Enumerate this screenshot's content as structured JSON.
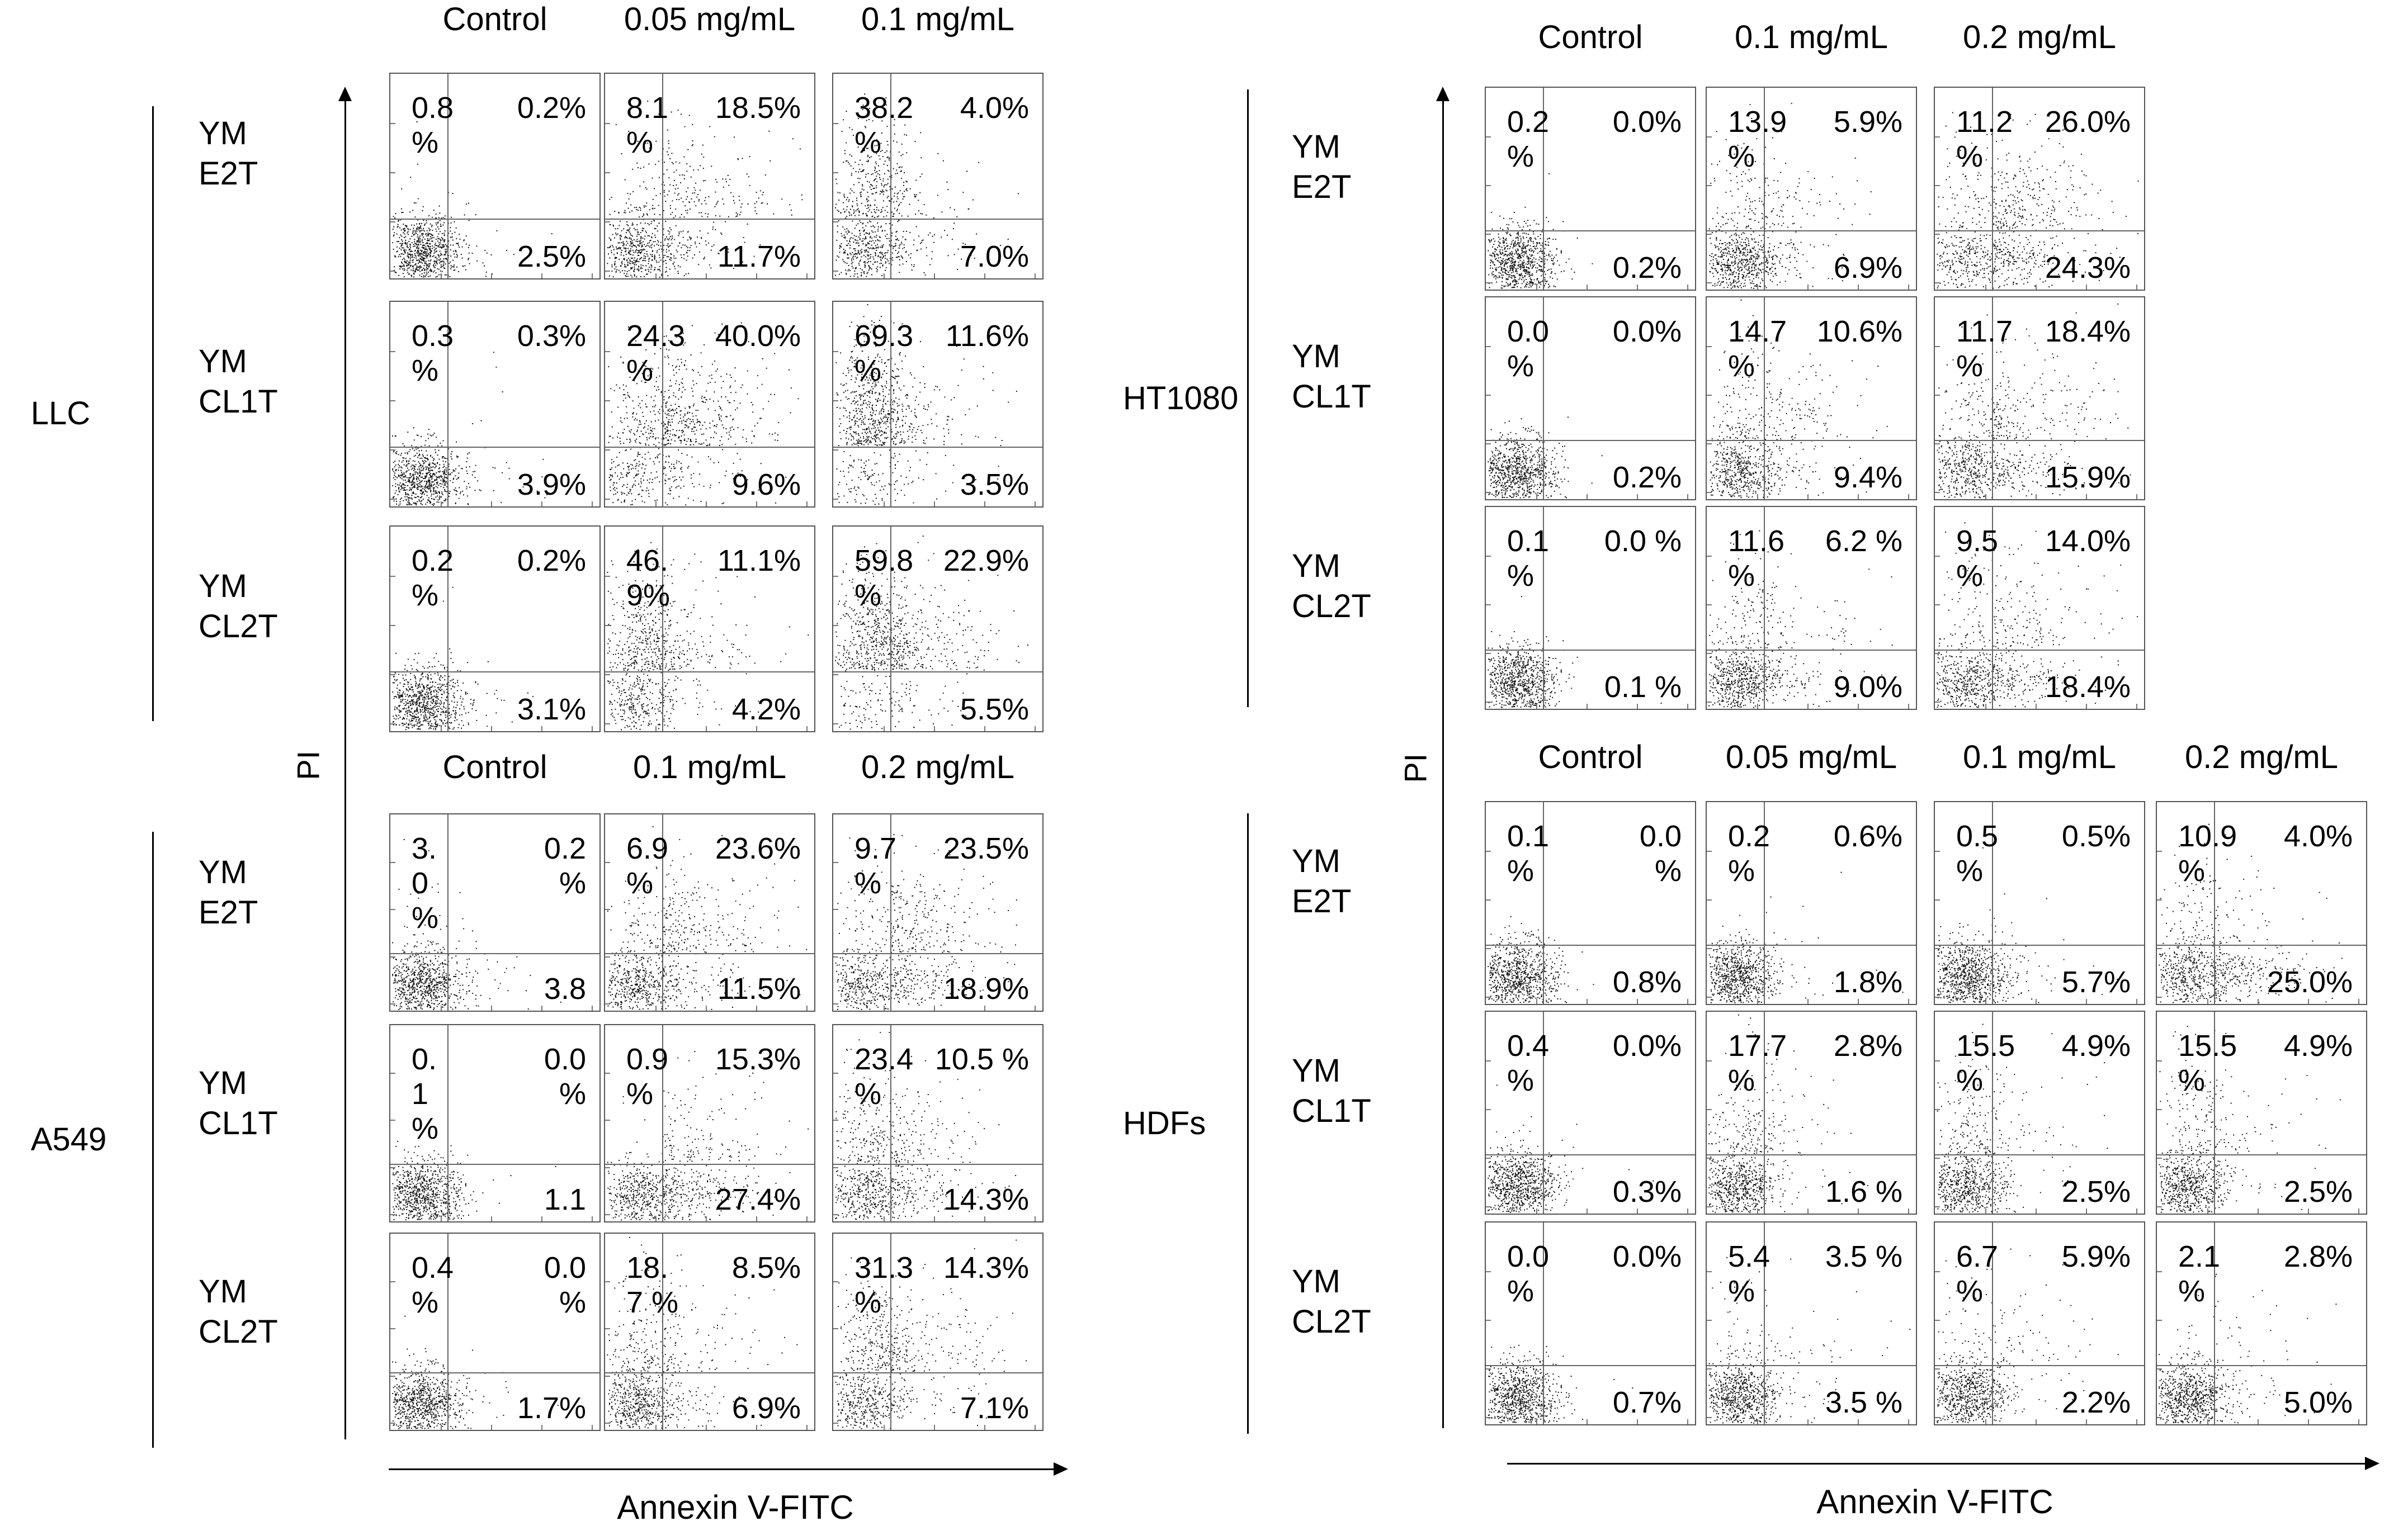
{
  "figure": {
    "left": {
      "pi_label": "PI",
      "axis_label": "Annexin V-FITC",
      "groups": [
        {
          "cell_line": "LLC",
          "conditions": [
            "Control",
            "0.05 mg/mL",
            "0.1 mg/mL"
          ],
          "rows": [
            {
              "label_line1": "YM",
              "label_line2": "E2T",
              "panels": [
                {
                  "ul": "0.8\n%",
                  "ur": "0.2%",
                  "lr": "2.5%"
                },
                {
                  "ul": "8.1\n%",
                  "ur": "18.5%",
                  "lr": "11.7%"
                },
                {
                  "ul": "38.2\n%",
                  "ur": "4.0%",
                  "lr": "7.0%"
                }
              ]
            },
            {
              "label_line1": "YM",
              "label_line2": "CL1T",
              "panels": [
                {
                  "ul": "0.3\n%",
                  "ur": "0.3%",
                  "lr": "3.9%"
                },
                {
                  "ul": "24.3\n%",
                  "ur": "40.0%",
                  "lr": "9.6%"
                },
                {
                  "ul": "69.3\n%",
                  "ur": "11.6%",
                  "lr": "3.5%"
                }
              ]
            },
            {
              "label_line1": "YM",
              "label_line2": "CL2T",
              "panels": [
                {
                  "ul": "0.2\n%",
                  "ur": "0.2%",
                  "lr": "3.1%"
                },
                {
                  "ul": "46.\n9%",
                  "ur": "11.1%",
                  "lr": "4.2%"
                },
                {
                  "ul": "59.8\n%",
                  "ur": "22.9%",
                  "lr": "5.5%"
                }
              ]
            }
          ]
        },
        {
          "cell_line": "A549",
          "conditions": [
            "Control",
            "0.1 mg/mL",
            "0.2 mg/mL"
          ],
          "rows": [
            {
              "label_line1": "YM",
              "label_line2": "E2T",
              "panels": [
                {
                  "ul": "3.\n0\n%",
                  "ur": "0.2\n%",
                  "lr": "3.8"
                },
                {
                  "ul": "6.9\n%",
                  "ur": "23.6%",
                  "lr": "11.5%"
                },
                {
                  "ul": "9.7\n%",
                  "ur": "23.5%",
                  "lr": "18.9%"
                }
              ]
            },
            {
              "label_line1": "YM",
              "label_line2": "CL1T",
              "panels": [
                {
                  "ul": "0.\n1\n%",
                  "ur": "0.0\n%",
                  "lr": "1.1"
                },
                {
                  "ul": "0.9\n%",
                  "ur": "15.3%",
                  "lr": "27.4%"
                },
                {
                  "ul": "23.4\n%",
                  "ur": "10.5 %",
                  "lr": "14.3%"
                }
              ]
            },
            {
              "label_line1": "YM",
              "label_line2": "CL2T",
              "panels": [
                {
                  "ul": "0.4\n%",
                  "ur": "0.0\n%",
                  "lr": "1.7%"
                },
                {
                  "ul": "18.\n7 %",
                  "ur": "8.5%",
                  "lr": "6.9%"
                },
                {
                  "ul": "31.3\n%",
                  "ur": "14.3%",
                  "lr": "7.1%"
                }
              ]
            }
          ]
        }
      ]
    },
    "right": {
      "pi_label": "PI",
      "axis_label": "Annexin V-FITC",
      "groups": [
        {
          "cell_line": "HT1080",
          "conditions": [
            "Control",
            "0.1 mg/mL",
            "0.2 mg/mL"
          ],
          "rows": [
            {
              "label_line1": "YM",
              "label_line2": "E2T",
              "panels": [
                {
                  "ul": "0.2\n%",
                  "ur": "0.0%",
                  "lr": "0.2%"
                },
                {
                  "ul": "13.9\n%",
                  "ur": "5.9%",
                  "lr": "6.9%"
                },
                {
                  "ul": "11.2\n%",
                  "ur": "26.0%",
                  "lr": "24.3%"
                }
              ]
            },
            {
              "label_line1": "YM",
              "label_line2": "CL1T",
              "panels": [
                {
                  "ul": "0.0\n%",
                  "ur": "0.0%",
                  "lr": "0.2%"
                },
                {
                  "ul": "14.7\n%",
                  "ur": "10.6%",
                  "lr": "9.4%"
                },
                {
                  "ul": "11.7\n%",
                  "ur": "18.4%",
                  "lr": "15.9%"
                }
              ]
            },
            {
              "label_line1": "YM",
              "label_line2": "CL2T",
              "panels": [
                {
                  "ul": "0.1\n%",
                  "ur": "0.0 %",
                  "lr": "0.1 %"
                },
                {
                  "ul": "11.6\n%",
                  "ur": "6.2 %",
                  "lr": "9.0%"
                },
                {
                  "ul": "9.5\n%",
                  "ur": "14.0%",
                  "lr": "18.4%"
                }
              ]
            }
          ]
        },
        {
          "cell_line": "HDFs",
          "conditions": [
            "Control",
            "0.05 mg/mL",
            "0.1 mg/mL",
            "0.2 mg/mL"
          ],
          "rows": [
            {
              "label_line1": "YM",
              "label_line2": "E2T",
              "panels": [
                {
                  "ul": "0.1\n%",
                  "ur": "0.0\n%",
                  "lr": "0.8%"
                },
                {
                  "ul": "0.2\n%",
                  "ur": "0.6%",
                  "lr": "1.8%"
                },
                {
                  "ul": "0.5\n%",
                  "ur": "0.5%",
                  "lr": "5.7%"
                },
                {
                  "ul": "10.9\n%",
                  "ur": "4.0%",
                  "lr": "25.0%"
                }
              ]
            },
            {
              "label_line1": "YM",
              "label_line2": "CL1T",
              "panels": [
                {
                  "ul": "0.4\n%",
                  "ur": "0.0%",
                  "lr": "0.3%"
                },
                {
                  "ul": "17.7\n%",
                  "ur": "2.8%",
                  "lr": "1.6 %"
                },
                {
                  "ul": "15.5\n%",
                  "ur": "4.9%",
                  "lr": "2.5%"
                },
                {
                  "ul": "15.5\n%",
                  "ur": "4.9%",
                  "lr": "2.5%"
                }
              ]
            },
            {
              "label_line1": "YM",
              "label_line2": "CL2T",
              "panels": [
                {
                  "ul": "0.0\n%",
                  "ur": "0.0%",
                  "lr": "0.7%"
                },
                {
                  "ul": "5.4\n%",
                  "ur": "3.5 %",
                  "lr": "3.5 %"
                },
                {
                  "ul": "6.7\n%",
                  "ur": "5.9%",
                  "lr": "2.2%"
                },
                {
                  "ul": "2.1\n%",
                  "ur": "2.8%",
                  "lr": "5.0%"
                }
              ]
            }
          ]
        }
      ]
    }
  }
}
